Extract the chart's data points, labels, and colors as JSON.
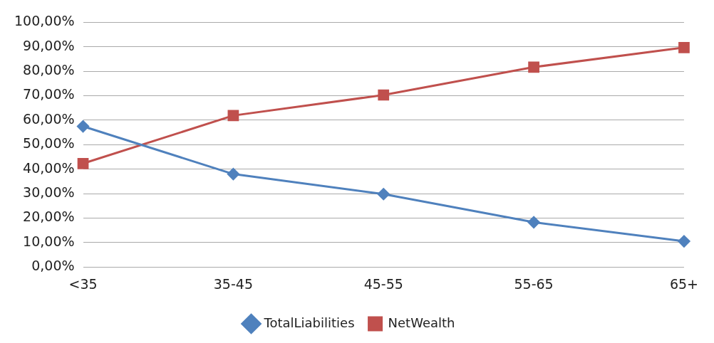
{
  "chart_data": {
    "type": "line",
    "categories": [
      "<35",
      "35-45",
      "45-55",
      "55-65",
      "65+"
    ],
    "series": [
      {
        "name": "TotalLiabilities",
        "color": "#4f81bd",
        "marker": "diamond",
        "values": [
          57.5,
          38,
          29.8,
          18.3,
          10.5
        ]
      },
      {
        "name": "NetWealth",
        "color": "#c0504d",
        "marker": "square",
        "values": [
          42.3,
          61.9,
          70.3,
          81.7,
          89.7
        ]
      }
    ],
    "ylim": [
      0,
      100
    ],
    "yticks": [
      {
        "value": 0,
        "label": "0,00%"
      },
      {
        "value": 10,
        "label": "10,00%"
      },
      {
        "value": 20,
        "label": "20,00%"
      },
      {
        "value": 30,
        "label": "30,00%"
      },
      {
        "value": 40,
        "label": "40,00%"
      },
      {
        "value": 50,
        "label": "50,00%"
      },
      {
        "value": 60,
        "label": "60,00%"
      },
      {
        "value": 70,
        "label": "70,00%"
      },
      {
        "value": 80,
        "label": "80,00%"
      },
      {
        "value": 90,
        "label": "90,00%"
      },
      {
        "value": 100,
        "label": "100,00%"
      }
    ],
    "grid": "y",
    "legend": "bottom",
    "line_style": "solid"
  }
}
